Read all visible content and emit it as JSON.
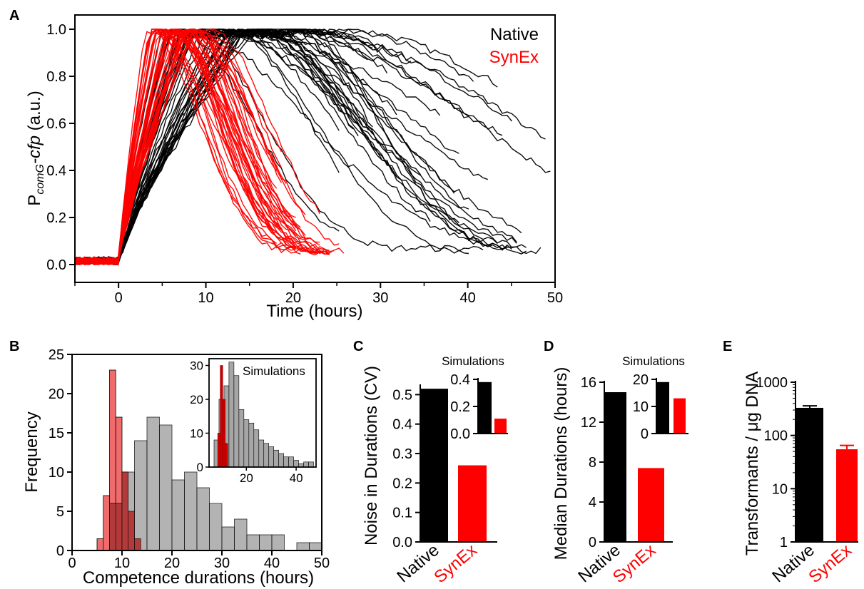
{
  "panels": {
    "A": "A",
    "B": "B",
    "C": "C",
    "D": "D",
    "E": "E"
  },
  "colors": {
    "native": "#000000",
    "synex": "#ff0000",
    "synex_hist": "#f06b6b",
    "native_hist": "#a6a6a6",
    "overlap": "#b33a3a"
  },
  "chart_data": [
    {
      "id": "A",
      "type": "line",
      "xlabel": "Time (hours)",
      "ylabel_prefix": "P",
      "ylabel_sub": "comG",
      "ylabel_italic": "-cfp",
      "ylabel_suffix": " (a.u.)",
      "xlim": [
        -5,
        50
      ],
      "ylim": [
        0,
        1
      ],
      "xticks": [
        "0",
        "10",
        "20",
        "30",
        "40",
        "50"
      ],
      "yticks": [
        "0.0",
        "0.2",
        "0.4",
        "0.6",
        "0.8",
        "1.0"
      ],
      "legend": {
        "position": "top-right",
        "native": "Native",
        "synex": "SynEx"
      },
      "series": [
        {
          "name": "Native",
          "color": "#000000",
          "n_traces": 40,
          "rise_start": 0,
          "peak_range": [
            5,
            16
          ],
          "plateau_range": [
            1,
            12
          ],
          "decay_to_zero_range": [
            22,
            75
          ],
          "x_end_range": [
            24,
            50
          ]
        },
        {
          "name": "SynEx",
          "color": "#ff0000",
          "n_traces": 40,
          "rise_start": 0,
          "peak_range": [
            3,
            9
          ],
          "plateau_range": [
            0,
            2
          ],
          "decay_to_zero_range": [
            14,
            22
          ],
          "x_end_range": [
            18,
            27
          ]
        }
      ]
    },
    {
      "id": "B",
      "type": "bar",
      "subtype": "histogram",
      "xlabel": "Competence durations (hours)",
      "ylabel": "Frequency",
      "xlim": [
        0,
        50
      ],
      "ylim": [
        0,
        25
      ],
      "xticks": [
        "0",
        "10",
        "20",
        "30",
        "40",
        "50"
      ],
      "yticks": [
        "0",
        "5",
        "10",
        "15",
        "20",
        "25"
      ],
      "bin_width": 2.5,
      "series": [
        {
          "name": "SynEx",
          "bins": [
            [
              5,
              7.5,
              1.5
            ],
            [
              6.25,
              7.5,
              7
            ],
            [
              7.5,
              8.75,
              23
            ],
            [
              8.75,
              10,
              17
            ],
            [
              10,
              11.25,
              10
            ],
            [
              11.25,
              12.5,
              5
            ],
            [
              12.5,
              13.75,
              1.5
            ]
          ]
        },
        {
          "name": "Native",
          "bins": [
            [
              7.5,
              10,
              6
            ],
            [
              10,
              12.5,
              10
            ],
            [
              12.5,
              15,
              14
            ],
            [
              15,
              17.5,
              17
            ],
            [
              17.5,
              20,
              16
            ],
            [
              20,
              22.5,
              9
            ],
            [
              22.5,
              25,
              10
            ],
            [
              25,
              27.5,
              8
            ],
            [
              27.5,
              30,
              6
            ],
            [
              30,
              32.5,
              3
            ],
            [
              32.5,
              35,
              4
            ],
            [
              35,
              37.5,
              2
            ],
            [
              37.5,
              40,
              2
            ],
            [
              40,
              42.5,
              2
            ],
            [
              45,
              47.5,
              1
            ],
            [
              47.5,
              50,
              1
            ]
          ]
        }
      ],
      "inset": {
        "label": "Simulations",
        "xlim": [
          5,
          48
        ],
        "ylim": [
          0,
          32
        ],
        "xticks": [
          "20",
          "40"
        ],
        "yticks": [
          "0",
          "10",
          "20",
          "30"
        ],
        "synex": [
          [
            8.5,
            9.5,
            10
          ],
          [
            9.5,
            10.5,
            30
          ],
          [
            10.5,
            11.5,
            20
          ],
          [
            11.5,
            12.5,
            7
          ]
        ],
        "native": [
          [
            7,
            9,
            8
          ],
          [
            9,
            11,
            20
          ],
          [
            11,
            13,
            24
          ],
          [
            13,
            15,
            31
          ],
          [
            15,
            17,
            27
          ],
          [
            17,
            19,
            17
          ],
          [
            19,
            21,
            14
          ],
          [
            21,
            23,
            13
          ],
          [
            23,
            25,
            11
          ],
          [
            25,
            27,
            8
          ],
          [
            27,
            29,
            7
          ],
          [
            29,
            31,
            6
          ],
          [
            31,
            33,
            5
          ],
          [
            33,
            35,
            4
          ],
          [
            35,
            37,
            3
          ],
          [
            37,
            39,
            3
          ],
          [
            39,
            41,
            2
          ],
          [
            41,
            43,
            1
          ],
          [
            43,
            45,
            1.5
          ],
          [
            45,
            47,
            1.5
          ]
        ]
      }
    },
    {
      "id": "C",
      "type": "bar",
      "ylabel": "Noise in Durations (CV)",
      "categories": [
        "Native",
        "SynEx"
      ],
      "values": [
        0.52,
        0.26
      ],
      "ylim": [
        0,
        0.53
      ],
      "yticks": [
        "0.0",
        "0.1",
        "0.2",
        "0.3",
        "0.4",
        "0.5"
      ],
      "inset": {
        "label": "Simulations",
        "categories": [
          "Native",
          "SynEx"
        ],
        "values": [
          0.38,
          0.11
        ],
        "ylim": [
          0,
          0.4
        ],
        "yticks": [
          "0.0",
          "0.2",
          "0.4"
        ]
      }
    },
    {
      "id": "D",
      "type": "bar",
      "ylabel": "Median Durations (hours)",
      "categories": [
        "Native",
        "SynEx"
      ],
      "values": [
        15,
        7.4
      ],
      "ylim": [
        0,
        16
      ],
      "yticks": [
        "0",
        "4",
        "8",
        "12",
        "16"
      ],
      "inset": {
        "label": "Simulations",
        "categories": [
          "Native",
          "SynEx"
        ],
        "values": [
          19,
          13
        ],
        "ylim": [
          0,
          20
        ],
        "yticks": [
          "0",
          "10",
          "20"
        ]
      }
    },
    {
      "id": "E",
      "type": "bar",
      "ylabel": "Transformants / μg DNA",
      "categories": [
        "Native",
        "SynEx"
      ],
      "values": [
        330,
        55
      ],
      "errors": [
        30,
        10
      ],
      "yscale": "log",
      "ylim": [
        1,
        1000
      ],
      "yticks": [
        "1",
        "10",
        "100",
        "1000"
      ]
    }
  ]
}
